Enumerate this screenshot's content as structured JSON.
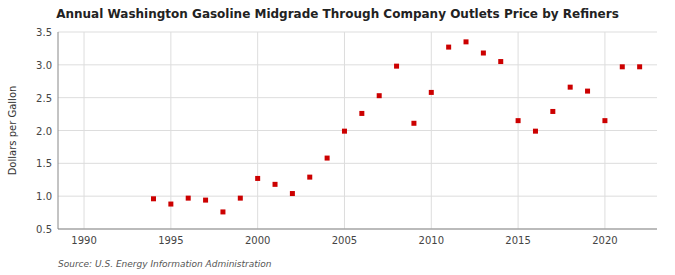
{
  "chart_data": {
    "type": "scatter",
    "title": "Annual Washington Gasoline Midgrade Through Company Outlets Price by Refiners",
    "ylabel": "Dollars per Gallon",
    "annotations": [
      "Source: U.S. Energy Information Administration"
    ],
    "color": "#cc0000",
    "marker": "square",
    "grid": true,
    "xlim": [
      1988.5,
      2023
    ],
    "ylim": [
      0.5,
      3.5
    ],
    "xticks": [
      1990,
      1995,
      2000,
      2005,
      2010,
      2015,
      2020
    ],
    "yticks": [
      0.5,
      {
        "value": 1.0,
        "label": "1.0"
      },
      1.5,
      {
        "value": 2.0,
        "label": "2.0"
      },
      2.5,
      {
        "value": 3.0,
        "label": "3.0"
      },
      3.5
    ],
    "x": [
      1994,
      1995,
      1996,
      1997,
      1998,
      1999,
      2000,
      2001,
      2002,
      2003,
      2004,
      2005,
      2006,
      2007,
      2008,
      2009,
      2010,
      2011,
      2012,
      2013,
      2014,
      2015,
      2016,
      2017,
      2018,
      2019,
      2020,
      2021,
      2022
    ],
    "values": [
      0.96,
      0.88,
      0.97,
      0.94,
      0.76,
      0.97,
      1.27,
      1.18,
      1.04,
      1.29,
      1.58,
      1.99,
      2.26,
      2.53,
      2.98,
      2.11,
      2.58,
      3.27,
      3.35,
      3.18,
      3.05,
      2.15,
      1.99,
      2.29,
      2.66,
      2.6,
      2.15,
      2.97,
      2.97
    ]
  }
}
